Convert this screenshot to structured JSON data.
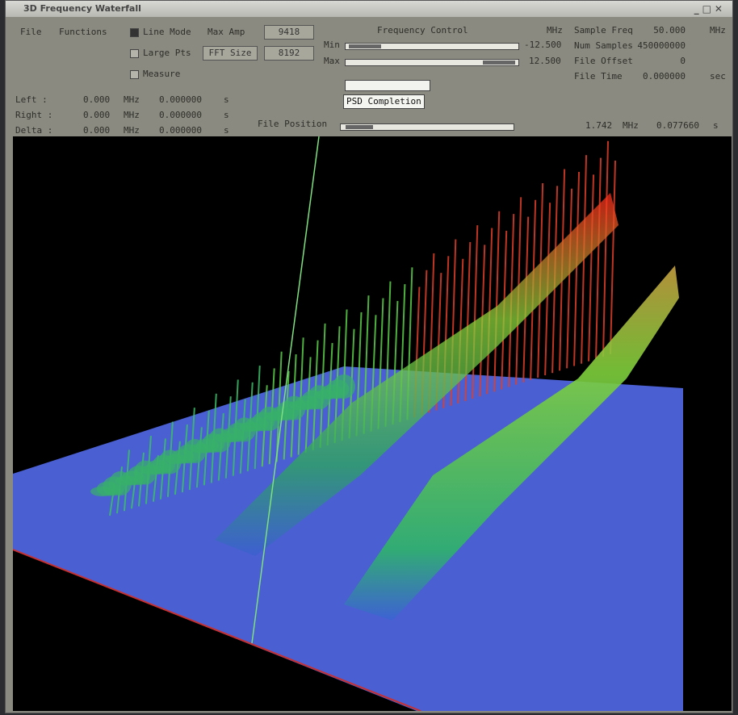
{
  "window": {
    "title": "3D Frequency Waterfall"
  },
  "menu": [
    "File",
    "Functions"
  ],
  "options": {
    "line_mode": "Line Mode",
    "large_pts": "Large Pts",
    "measure": "Measure"
  },
  "max_amp": {
    "label": "Max Amp",
    "value": "9418"
  },
  "fft_size": {
    "label": "FFT Size",
    "value": "8192"
  },
  "frequency_control": {
    "title": "Frequency Control",
    "unit": "MHz",
    "min_label": "Min",
    "min_value": "-12.500",
    "max_label": "Max",
    "max_value": "12.500"
  },
  "file_info": [
    [
      "Sample Freq",
      "50.000",
      "MHz"
    ],
    [
      "Num Samples",
      "450000000"
    ],
    [
      "File Offset",
      "0"
    ],
    [
      "File Time",
      "0.000000",
      "sec"
    ]
  ],
  "psd": "PSD Completion",
  "markers": [
    [
      "Left :",
      "0.000",
      "MHz",
      "0.000000",
      "s"
    ],
    [
      "Right :",
      "0.000",
      "MHz",
      "0.000000",
      "s"
    ],
    [
      "Delta :",
      "0.000",
      "MHz",
      "0.000000",
      "s"
    ]
  ],
  "file_position": {
    "label": "File Position",
    "freq": "1.742",
    "freq_unit": "MHz",
    "time": "0.077660",
    "time_unit": "s"
  }
}
